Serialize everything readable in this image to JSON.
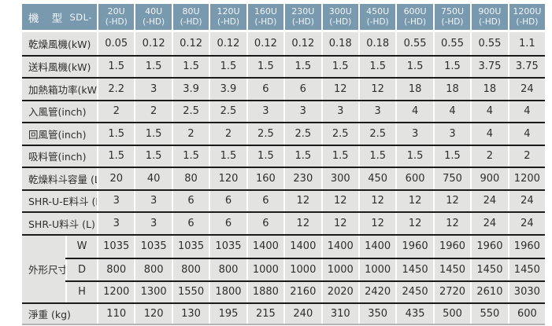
{
  "table": {
    "header": {
      "model_label": "機 型",
      "series_prefix": "SDL-",
      "columns": [
        {
          "model": "20U",
          "suffix": "(-HD)"
        },
        {
          "model": "40U",
          "suffix": "(-HD)"
        },
        {
          "model": "80U",
          "suffix": "(-HD)"
        },
        {
          "model": "120U",
          "suffix": "(-HD)"
        },
        {
          "model": "160U",
          "suffix": "(-HD)"
        },
        {
          "model": "230U",
          "suffix": "(-HD)"
        },
        {
          "model": "300U",
          "suffix": "(-HD)"
        },
        {
          "model": "450U",
          "suffix": "(-HD)"
        },
        {
          "model": "600U",
          "suffix": "(-HD)"
        },
        {
          "model": "750U",
          "suffix": "(-HD)"
        },
        {
          "model": "900U",
          "suffix": "(-HD)"
        },
        {
          "model": "1200U",
          "suffix": "(-HD)"
        }
      ]
    },
    "rows": [
      {
        "label": "乾燥風機(kW)",
        "values": [
          "0.05",
          "0.12",
          "0.12",
          "0.12",
          "0.12",
          "0.12",
          "0.18",
          "0.18",
          "0.55",
          "0.55",
          "0.55",
          "1.1"
        ]
      },
      {
        "label": "送料風機(kW)",
        "values": [
          "1.5",
          "1.5",
          "1.5",
          "1.5",
          "1.5",
          "1.5",
          "1.5",
          "1.5",
          "1.5",
          "1.5",
          "3.75",
          "3.75"
        ]
      },
      {
        "label": "加熱箱功率(kW)",
        "values": [
          "2.2",
          "3",
          "3.9",
          "3.9",
          "6",
          "6",
          "12",
          "12",
          "18",
          "18",
          "18",
          "24"
        ]
      },
      {
        "label": "入風管(inch)",
        "values": [
          "2",
          "2",
          "2.5",
          "2.5",
          "3",
          "3",
          "3",
          "3",
          "4",
          "4",
          "4",
          "4"
        ]
      },
      {
        "label": "回風管(inch)",
        "values": [
          "1.5",
          "1.5",
          "2",
          "2",
          "2.5",
          "2.5",
          "2.5",
          "2.5",
          "3",
          "3",
          "4",
          "4"
        ]
      },
      {
        "label": "吸料管(inch)",
        "values": [
          "1.5",
          "1.5",
          "1.5",
          "1.5",
          "1.5",
          "1.5",
          "1.5",
          "1.5",
          "1.5",
          "1.5",
          "2",
          "2"
        ]
      },
      {
        "label": "乾燥料斗容量 (L)",
        "values": [
          "20",
          "40",
          "80",
          "120",
          "160",
          "230",
          "300",
          "450",
          "600",
          "750",
          "900",
          "1200"
        ]
      },
      {
        "label": "SHR-U-E料斗 (L)",
        "values": [
          "3",
          "3",
          "6",
          "6",
          "6",
          "12",
          "12",
          "12",
          "12",
          "12",
          "24",
          "24"
        ]
      },
      {
        "label": "SHR-U料斗 (L)",
        "values": [
          "3",
          "3",
          "6",
          "6",
          "6",
          "12",
          "12",
          "12",
          "12",
          "12",
          "24",
          "24"
        ]
      },
      {
        "label": "外形尺寸(mm)",
        "sub_rows": [
          {
            "label": "W",
            "values": [
              "1035",
              "1035",
              "1035",
              "1035",
              "1400",
              "1400",
              "1400",
              "1400",
              "1960",
              "1960",
              "1960",
              "1960"
            ]
          },
          {
            "label": "D",
            "values": [
              "800",
              "800",
              "800",
              "800",
              "1000",
              "1000",
              "1000",
              "1000",
              "1450",
              "1450",
              "1450",
              "1450"
            ]
          },
          {
            "label": "H",
            "values": [
              "1200",
              "1300",
              "1550",
              "1800",
              "1880",
              "2160",
              "2020",
              "2420",
              "2450",
              "2720",
              "2610",
              "3030"
            ]
          }
        ]
      },
      {
        "label": "淨重 (kg)",
        "values": [
          "110",
          "120",
          "130",
          "195",
          "215",
          "240",
          "310",
          "350",
          "435",
          "500",
          "550",
          "600"
        ]
      }
    ],
    "colors": {
      "header_bg": "#7899ae",
      "header_text": "#f2f6f8",
      "cell_bg": "#e3e3e1",
      "cell_text": "#2e2e2e",
      "row_divider": "#1b1b1b",
      "column_divider": "#ffffff",
      "bottom_edge": "#b3b3b3"
    }
  }
}
